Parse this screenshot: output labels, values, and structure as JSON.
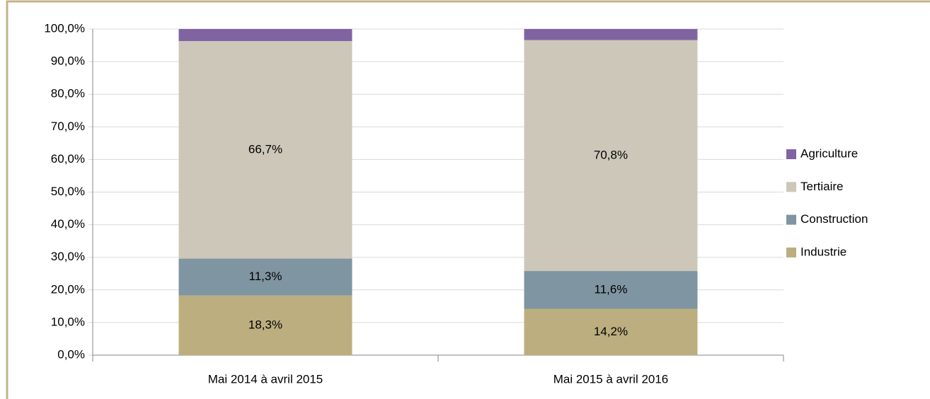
{
  "chart_data": {
    "type": "stacked_bar",
    "categories": [
      "Mai 2014 à avril 2015",
      "Mai  2015 à avril 2016"
    ],
    "series": [
      {
        "name": "Industrie",
        "color": "#bcae7e",
        "values": [
          18.3,
          14.2
        ],
        "value_labels": [
          "18,3%",
          "14,2%"
        ]
      },
      {
        "name": "Construction",
        "color": "#7f95a1",
        "values": [
          11.3,
          11.6
        ],
        "value_labels": [
          "11,3%",
          "11,6%"
        ]
      },
      {
        "name": "Tertiaire",
        "color": "#ccc7b9",
        "values": [
          66.7,
          70.8
        ],
        "value_labels": [
          "66,7%",
          "70,8%"
        ]
      },
      {
        "name": "Agriculture",
        "color": "#8064a2",
        "values": [
          3.7,
          3.4
        ]
      }
    ],
    "ylim": [
      0,
      100
    ],
    "yticks": [
      {
        "value": 0,
        "label": "0,0%"
      },
      {
        "value": 10,
        "label": "10,0%"
      },
      {
        "value": 20,
        "label": "20,0%"
      },
      {
        "value": 30,
        "label": "30,0%"
      },
      {
        "value": 40,
        "label": "40,0%"
      },
      {
        "value": 50,
        "label": "50,0%"
      },
      {
        "value": 60,
        "label": "60,0%"
      },
      {
        "value": 70,
        "label": "70,0%"
      },
      {
        "value": 80,
        "label": "80,0%"
      },
      {
        "value": 90,
        "label": "90,0%"
      },
      {
        "value": 100,
        "label": "100,0%"
      }
    ],
    "grid": true,
    "legend": "right"
  }
}
